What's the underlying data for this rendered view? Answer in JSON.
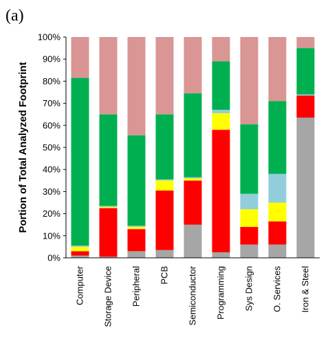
{
  "panel_label": "(a)",
  "colors": {
    "gray": "#a6a6a6",
    "red": "#ff0000",
    "yellow": "#ffff00",
    "light_blue": "#92cddc",
    "green": "#00b050",
    "pink": "#d99694"
  },
  "chart_data": {
    "type": "bar",
    "stacked": true,
    "title": "",
    "xlabel": "",
    "ylabel": "Portion of Total Analyzed Footprint",
    "ylim": [
      0,
      100
    ],
    "yticks": [
      "0%",
      "10%",
      "20%",
      "30%",
      "40%",
      "50%",
      "60%",
      "70%",
      "80%",
      "90%",
      "100%"
    ],
    "categories": [
      "Computer",
      "Storage Device",
      "Peripheral",
      "PCB",
      "Semiconductor",
      "Programming",
      "Sys Design",
      "O. Services",
      "Iron & Steel"
    ],
    "series": [
      {
        "color": "#a6a6a6",
        "values": [
          1,
          0.5,
          3,
          3.5,
          15,
          2.5,
          6,
          6,
          63.5
        ]
      },
      {
        "color": "#ff0000",
        "values": [
          2,
          22,
          10,
          27,
          20,
          55.5,
          8,
          10.5,
          10
        ]
      },
      {
        "color": "#ffff00",
        "values": [
          2,
          0.5,
          1,
          4.5,
          1,
          7.5,
          8,
          8.5,
          0
        ]
      },
      {
        "color": "#92cddc",
        "values": [
          0.5,
          0.5,
          0.5,
          0.5,
          0.5,
          1.5,
          7,
          13,
          0.5
        ]
      },
      {
        "color": "#00b050",
        "values": [
          76,
          41.5,
          41,
          29.5,
          38,
          22,
          31.5,
          33,
          21
        ]
      },
      {
        "color": "#d99694",
        "values": [
          18.5,
          35,
          44.5,
          35,
          25.5,
          11,
          39.5,
          29,
          5
        ]
      }
    ],
    "grid": false,
    "legend": "none"
  }
}
